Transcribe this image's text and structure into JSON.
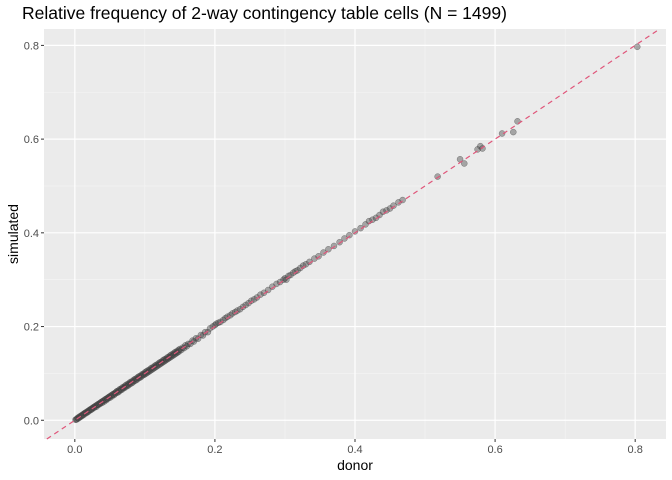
{
  "chart_data": {
    "type": "scatter",
    "title": "Relative frequency of 2-way contingency table cells (N = 1499)",
    "xlabel": "donor",
    "ylabel": "simulated",
    "xlim": [
      -0.044,
      0.844
    ],
    "ylim": [
      -0.04,
      0.835
    ],
    "x_ticks": [
      0.0,
      0.2,
      0.4,
      0.6,
      0.8
    ],
    "y_ticks": [
      0.0,
      0.2,
      0.4,
      0.6,
      0.8
    ],
    "x_tick_labels": [
      "0.0",
      "0.2",
      "0.4",
      "0.6",
      "0.8"
    ],
    "y_tick_labels": [
      "0.0",
      "0.2",
      "0.4",
      "0.6",
      "0.8"
    ],
    "grid": true,
    "reference_line": {
      "slope": 1,
      "intercept": 0,
      "style": "dashed",
      "color": "#e0567a"
    },
    "point_color": "#4d4d4d",
    "panel_background": "#ebebeb",
    "points": [
      [
        0.001,
        0.001
      ],
      [
        0.002,
        0.002
      ],
      [
        0.003,
        0.002
      ],
      [
        0.004,
        0.005
      ],
      [
        0.005,
        0.004
      ],
      [
        0.006,
        0.007
      ],
      [
        0.007,
        0.006
      ],
      [
        0.008,
        0.009
      ],
      [
        0.009,
        0.008
      ],
      [
        0.01,
        0.011
      ],
      [
        0.011,
        0.01
      ],
      [
        0.012,
        0.013
      ],
      [
        0.013,
        0.012
      ],
      [
        0.014,
        0.015
      ],
      [
        0.015,
        0.016
      ],
      [
        0.016,
        0.015
      ],
      [
        0.017,
        0.018
      ],
      [
        0.018,
        0.017
      ],
      [
        0.019,
        0.02
      ],
      [
        0.02,
        0.019
      ],
      [
        0.021,
        0.022
      ],
      [
        0.022,
        0.023
      ],
      [
        0.023,
        0.022
      ],
      [
        0.024,
        0.025
      ],
      [
        0.025,
        0.024
      ],
      [
        0.026,
        0.027
      ],
      [
        0.027,
        0.028
      ],
      [
        0.028,
        0.027
      ],
      [
        0.029,
        0.03
      ],
      [
        0.03,
        0.031
      ],
      [
        0.031,
        0.029
      ],
      [
        0.032,
        0.033
      ],
      [
        0.033,
        0.034
      ],
      [
        0.034,
        0.033
      ],
      [
        0.035,
        0.036
      ],
      [
        0.036,
        0.035
      ],
      [
        0.037,
        0.038
      ],
      [
        0.038,
        0.039
      ],
      [
        0.039,
        0.037
      ],
      [
        0.04,
        0.041
      ],
      [
        0.041,
        0.042
      ],
      [
        0.042,
        0.04
      ],
      [
        0.043,
        0.044
      ],
      [
        0.044,
        0.045
      ],
      [
        0.045,
        0.043
      ],
      [
        0.046,
        0.047
      ],
      [
        0.047,
        0.046
      ],
      [
        0.048,
        0.049
      ],
      [
        0.049,
        0.05
      ],
      [
        0.05,
        0.048
      ],
      [
        0.051,
        0.052
      ],
      [
        0.052,
        0.053
      ],
      [
        0.053,
        0.051
      ],
      [
        0.054,
        0.055
      ],
      [
        0.055,
        0.056
      ],
      [
        0.056,
        0.054
      ],
      [
        0.057,
        0.058
      ],
      [
        0.058,
        0.057
      ],
      [
        0.059,
        0.06
      ],
      [
        0.06,
        0.062
      ],
      [
        0.061,
        0.059
      ],
      [
        0.062,
        0.063
      ],
      [
        0.063,
        0.061
      ],
      [
        0.064,
        0.066
      ],
      [
        0.065,
        0.064
      ],
      [
        0.066,
        0.067
      ],
      [
        0.067,
        0.065
      ],
      [
        0.068,
        0.07
      ],
      [
        0.069,
        0.068
      ],
      [
        0.07,
        0.071
      ],
      [
        0.071,
        0.069
      ],
      [
        0.072,
        0.074
      ],
      [
        0.073,
        0.072
      ],
      [
        0.074,
        0.076
      ],
      [
        0.075,
        0.073
      ],
      [
        0.076,
        0.077
      ],
      [
        0.077,
        0.075
      ],
      [
        0.078,
        0.08
      ],
      [
        0.079,
        0.078
      ],
      [
        0.08,
        0.082
      ],
      [
        0.081,
        0.079
      ],
      [
        0.082,
        0.083
      ],
      [
        0.083,
        0.081
      ],
      [
        0.084,
        0.086
      ],
      [
        0.085,
        0.084
      ],
      [
        0.086,
        0.088
      ],
      [
        0.087,
        0.085
      ],
      [
        0.088,
        0.089
      ],
      [
        0.089,
        0.087
      ],
      [
        0.09,
        0.092
      ],
      [
        0.091,
        0.09
      ],
      [
        0.092,
        0.094
      ],
      [
        0.093,
        0.091
      ],
      [
        0.094,
        0.095
      ],
      [
        0.095,
        0.093
      ],
      [
        0.096,
        0.098
      ],
      [
        0.097,
        0.096
      ],
      [
        0.098,
        0.099
      ],
      [
        0.099,
        0.097
      ],
      [
        0.1,
        0.102
      ],
      [
        0.101,
        0.099
      ],
      [
        0.102,
        0.104
      ],
      [
        0.103,
        0.101
      ],
      [
        0.104,
        0.106
      ],
      [
        0.105,
        0.103
      ],
      [
        0.106,
        0.107
      ],
      [
        0.107,
        0.105
      ],
      [
        0.108,
        0.11
      ],
      [
        0.109,
        0.107
      ],
      [
        0.11,
        0.112
      ],
      [
        0.111,
        0.109
      ],
      [
        0.112,
        0.113
      ],
      [
        0.113,
        0.111
      ],
      [
        0.114,
        0.116
      ],
      [
        0.115,
        0.113
      ],
      [
        0.116,
        0.118
      ],
      [
        0.117,
        0.115
      ],
      [
        0.118,
        0.119
      ],
      [
        0.119,
        0.117
      ],
      [
        0.12,
        0.122
      ],
      [
        0.121,
        0.119
      ],
      [
        0.122,
        0.124
      ],
      [
        0.123,
        0.121
      ],
      [
        0.124,
        0.125
      ],
      [
        0.125,
        0.123
      ],
      [
        0.126,
        0.128
      ],
      [
        0.127,
        0.125
      ],
      [
        0.128,
        0.13
      ],
      [
        0.129,
        0.127
      ],
      [
        0.13,
        0.131
      ],
      [
        0.131,
        0.129
      ],
      [
        0.132,
        0.134
      ],
      [
        0.133,
        0.131
      ],
      [
        0.134,
        0.135
      ],
      [
        0.135,
        0.133
      ],
      [
        0.136,
        0.138
      ],
      [
        0.137,
        0.135
      ],
      [
        0.138,
        0.14
      ],
      [
        0.139,
        0.137
      ],
      [
        0.14,
        0.141
      ],
      [
        0.141,
        0.139
      ],
      [
        0.142,
        0.144
      ],
      [
        0.143,
        0.141
      ],
      [
        0.144,
        0.146
      ],
      [
        0.145,
        0.143
      ],
      [
        0.146,
        0.147
      ],
      [
        0.147,
        0.145
      ],
      [
        0.148,
        0.15
      ],
      [
        0.149,
        0.147
      ],
      [
        0.15,
        0.152
      ],
      [
        0.152,
        0.15
      ],
      [
        0.154,
        0.155
      ],
      [
        0.156,
        0.154
      ],
      [
        0.158,
        0.16
      ],
      [
        0.16,
        0.158
      ],
      [
        0.162,
        0.163
      ],
      [
        0.165,
        0.163
      ],
      [
        0.168,
        0.17
      ],
      [
        0.17,
        0.168
      ],
      [
        0.173,
        0.175
      ],
      [
        0.176,
        0.174
      ],
      [
        0.18,
        0.182
      ],
      [
        0.183,
        0.181
      ],
      [
        0.186,
        0.188
      ],
      [
        0.19,
        0.188
      ],
      [
        0.193,
        0.196
      ],
      [
        0.197,
        0.2
      ],
      [
        0.2,
        0.203
      ],
      [
        0.202,
        0.206
      ],
      [
        0.205,
        0.208
      ],
      [
        0.208,
        0.21
      ],
      [
        0.212,
        0.214
      ],
      [
        0.215,
        0.218
      ],
      [
        0.218,
        0.221
      ],
      [
        0.222,
        0.224
      ],
      [
        0.225,
        0.228
      ],
      [
        0.229,
        0.231
      ],
      [
        0.232,
        0.234
      ],
      [
        0.236,
        0.237
      ],
      [
        0.24,
        0.242
      ],
      [
        0.244,
        0.246
      ],
      [
        0.248,
        0.25
      ],
      [
        0.252,
        0.255
      ],
      [
        0.256,
        0.258
      ],
      [
        0.26,
        0.262
      ],
      [
        0.265,
        0.268
      ],
      [
        0.27,
        0.272
      ],
      [
        0.276,
        0.278
      ],
      [
        0.282,
        0.285
      ],
      [
        0.288,
        0.291
      ],
      [
        0.293,
        0.295
      ],
      [
        0.298,
        0.3
      ],
      [
        0.3,
        0.303
      ],
      [
        0.302,
        0.3
      ],
      [
        0.305,
        0.308
      ],
      [
        0.308,
        0.31
      ],
      [
        0.312,
        0.315
      ],
      [
        0.315,
        0.318
      ],
      [
        0.318,
        0.32
      ],
      [
        0.322,
        0.325
      ],
      [
        0.326,
        0.33
      ],
      [
        0.33,
        0.333
      ],
      [
        0.335,
        0.338
      ],
      [
        0.342,
        0.345
      ],
      [
        0.348,
        0.35
      ],
      [
        0.355,
        0.358
      ],
      [
        0.362,
        0.365
      ],
      [
        0.37,
        0.372
      ],
      [
        0.378,
        0.38
      ],
      [
        0.385,
        0.388
      ],
      [
        0.392,
        0.395
      ],
      [
        0.4,
        0.403
      ],
      [
        0.408,
        0.41
      ],
      [
        0.415,
        0.418
      ],
      [
        0.42,
        0.425
      ],
      [
        0.425,
        0.428
      ],
      [
        0.43,
        0.432
      ],
      [
        0.435,
        0.438
      ],
      [
        0.44,
        0.445
      ],
      [
        0.445,
        0.448
      ],
      [
        0.45,
        0.452
      ],
      [
        0.455,
        0.458
      ],
      [
        0.462,
        0.465
      ],
      [
        0.468,
        0.47
      ],
      [
        0.518,
        0.52
      ],
      [
        0.55,
        0.557
      ],
      [
        0.556,
        0.548
      ],
      [
        0.575,
        0.578
      ],
      [
        0.579,
        0.585
      ],
      [
        0.582,
        0.58
      ],
      [
        0.61,
        0.612
      ],
      [
        0.626,
        0.615
      ],
      [
        0.632,
        0.638
      ],
      [
        0.803,
        0.797
      ]
    ]
  }
}
